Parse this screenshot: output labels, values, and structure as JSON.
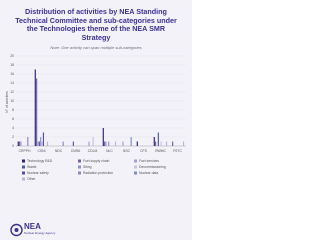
{
  "chart_data": {
    "type": "bar",
    "title": "Distribution of activities by NEA Standing Technical Committee and sub-categories under the Technologies theme of the NEA SMR Strategy",
    "note": "Note: One activity can span multiple sub-categories",
    "ylabel": "N° of activities",
    "categories": [
      "CRPPH",
      "CSNI",
      "NDC",
      "CNRA",
      "CDLM",
      "NLC",
      "NSC",
      "CFS",
      "RWMC",
      "FSTC"
    ],
    "ylim": [
      0,
      20
    ],
    "yticks": [
      0,
      2,
      4,
      6,
      8,
      10,
      12,
      14,
      16,
      18,
      20
    ],
    "grid": true,
    "series": [
      {
        "name": "Technology R&D",
        "color": "#2e1f6e",
        "values": [
          1,
          17,
          0,
          0,
          0,
          4,
          0,
          1,
          2,
          0
        ]
      },
      {
        "name": "Fuel supply chain",
        "color": "#6f5fae",
        "values": [
          1,
          15,
          0,
          0,
          0,
          1,
          0,
          0,
          1,
          1
        ]
      },
      {
        "name": "Fuel services",
        "color": "#a99bd3",
        "values": [
          1,
          1,
          0,
          0,
          1,
          1,
          1,
          0,
          0,
          0
        ]
      },
      {
        "name": "Waste",
        "color": "#4a5ba0",
        "values": [
          0,
          1,
          0,
          1,
          0,
          0,
          0,
          0,
          3,
          0
        ]
      },
      {
        "name": "Siting",
        "color": "#8a93c9",
        "values": [
          0,
          2,
          0,
          0,
          0,
          1,
          0,
          0,
          0,
          0
        ]
      },
      {
        "name": "Decommissioning",
        "color": "#c7c1e4",
        "values": [
          0,
          1,
          0,
          0,
          2,
          0,
          0,
          0,
          1,
          0
        ]
      },
      {
        "name": "Nuclear safety",
        "color": "#5c4a9e",
        "values": [
          0,
          3,
          0,
          0,
          0,
          0,
          0,
          0,
          0,
          0
        ]
      },
      {
        "name": "Radiation protection",
        "color": "#9c7fc9",
        "values": [
          2,
          0,
          0,
          0,
          0,
          0,
          0,
          0,
          0,
          0
        ]
      },
      {
        "name": "Nuclear data",
        "color": "#7d8fbf",
        "values": [
          0,
          0,
          1,
          0,
          0,
          0,
          2,
          0,
          0,
          0
        ]
      },
      {
        "name": "Other",
        "color": "#b9b3d6",
        "values": [
          0,
          1,
          0,
          0,
          0,
          1,
          0,
          0,
          1,
          1
        ]
      }
    ]
  },
  "logo": {
    "name": "NEA",
    "subtitle": "Nuclear Energy Agency"
  }
}
